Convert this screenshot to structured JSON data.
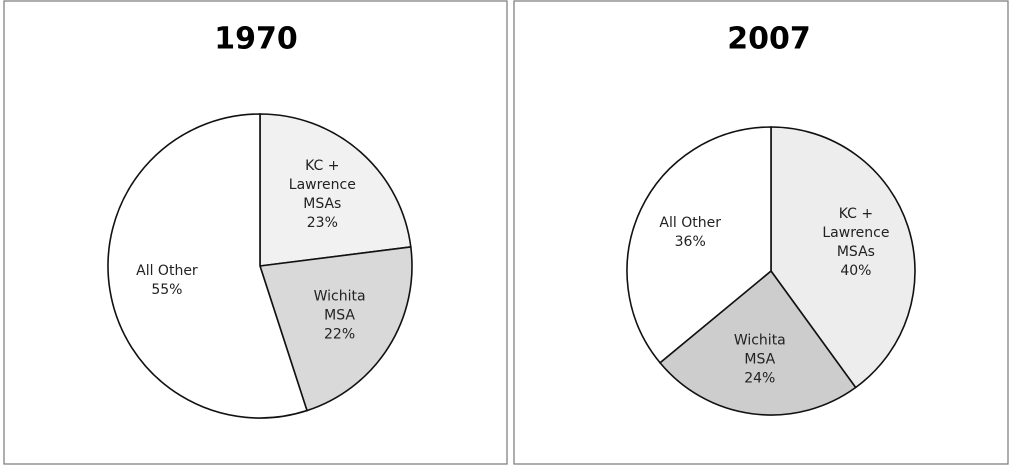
{
  "chart_data": [
    {
      "type": "pie",
      "title": "1970",
      "categories": [
        "KC + Lawrence MSAs",
        "Wichita MSA",
        "All Other"
      ],
      "values": [
        23,
        22,
        55
      ],
      "value_labels": [
        "23%",
        "22%",
        "55%"
      ],
      "colors": [
        "#f1f1f1",
        "#d9d9d9",
        "#ffffff"
      ]
    },
    {
      "type": "pie",
      "title": "2007",
      "categories": [
        "KC + Lawrence MSAs",
        "Wichita MSA",
        "All Other"
      ],
      "values": [
        40,
        24,
        36
      ],
      "value_labels": [
        "40%",
        "24%",
        "36%"
      ],
      "colors": [
        "#ededed",
        "#cdcdcd",
        "#ffffff"
      ]
    }
  ]
}
